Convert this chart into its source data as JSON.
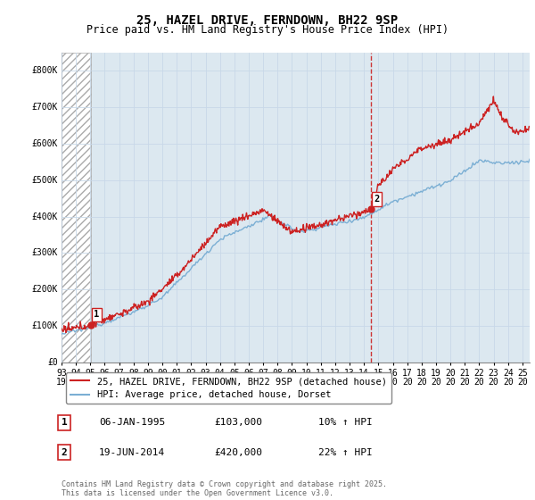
{
  "title": "25, HAZEL DRIVE, FERNDOWN, BH22 9SP",
  "subtitle": "Price paid vs. HM Land Registry's House Price Index (HPI)",
  "ylim": [
    0,
    850000
  ],
  "yticks": [
    0,
    100000,
    200000,
    300000,
    400000,
    500000,
    600000,
    700000,
    800000
  ],
  "ytick_labels": [
    "£0",
    "£100K",
    "£200K",
    "£300K",
    "£400K",
    "£500K",
    "£600K",
    "£700K",
    "£800K"
  ],
  "xlim_start": 1993.0,
  "xlim_end": 2025.5,
  "sale1_date": 1995.03,
  "sale1_price": 103000,
  "sale1_label": "1",
  "sale2_date": 2014.47,
  "sale2_price": 420000,
  "sale2_label": "2",
  "hpi_line_color": "#7bafd4",
  "price_line_color": "#cc2222",
  "sale_marker_color": "#cc2222",
  "vline_color": "#cc2222",
  "grid_color": "#c8d8e8",
  "bg_main_color": "#dce8f0",
  "legend_label_price": "25, HAZEL DRIVE, FERNDOWN, BH22 9SP (detached house)",
  "legend_label_hpi": "HPI: Average price, detached house, Dorset",
  "annotation1_label": "1",
  "annotation1_date": "06-JAN-1995",
  "annotation1_price": "£103,000",
  "annotation1_hpi": "10% ↑ HPI",
  "annotation2_label": "2",
  "annotation2_date": "19-JUN-2014",
  "annotation2_price": "£420,000",
  "annotation2_hpi": "22% ↑ HPI",
  "copyright_text": "Contains HM Land Registry data © Crown copyright and database right 2025.\nThis data is licensed under the Open Government Licence v3.0.",
  "title_fontsize": 10,
  "subtitle_fontsize": 8.5,
  "tick_fontsize": 7,
  "legend_fontsize": 7.5,
  "annotation_fontsize": 8
}
